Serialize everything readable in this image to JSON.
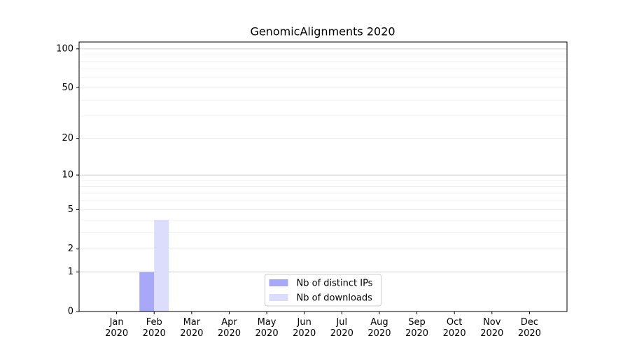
{
  "chart_data": {
    "type": "bar",
    "title": "GenomicAlignments 2020",
    "categories": [
      "Jan\n2020",
      "Feb\n2020",
      "Mar\n2020",
      "Apr\n2020",
      "May\n2020",
      "Jun\n2020",
      "Jul\n2020",
      "Aug\n2020",
      "Sep\n2020",
      "Oct\n2020",
      "Nov\n2020",
      "Dec\n2020"
    ],
    "series": [
      {
        "name": "Nb of distinct IPs",
        "color": "#a8a8f8",
        "values": [
          0,
          1,
          0,
          0,
          0,
          0,
          0,
          0,
          0,
          0,
          0,
          0
        ]
      },
      {
        "name": "Nb of downloads",
        "color": "#dcdcfc",
        "values": [
          0,
          4,
          0,
          0,
          0,
          0,
          0,
          0,
          0,
          0,
          0,
          0
        ]
      }
    ],
    "yscale": "log1p",
    "ylim": [
      0,
      113
    ],
    "yticks": [
      0,
      1,
      2,
      5,
      10,
      20,
      50,
      100
    ],
    "yticks_minor": [
      3,
      4,
      6,
      7,
      8,
      9,
      30,
      40,
      60,
      70,
      80,
      90
    ],
    "grid": true,
    "legend": "lower center"
  }
}
